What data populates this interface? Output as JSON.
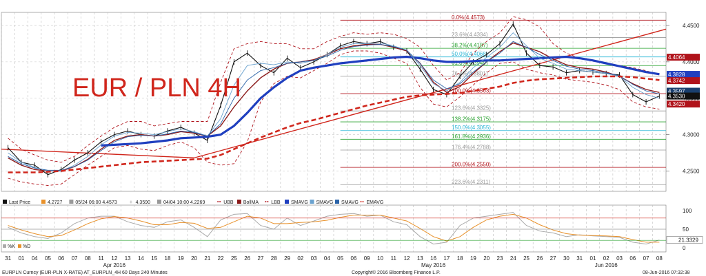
{
  "chart_data": {
    "type": "line",
    "title": "EUR / PLN 4H",
    "title_color": "#d0261c",
    "price_axis": {
      "ylim": [
        4.222,
        4.468
      ],
      "tick_labels": [
        "4.4500",
        "4.4000",
        "4.3500",
        "4.3000",
        "4.2500"
      ],
      "tick_values": [
        4.45,
        4.4,
        4.35,
        4.3,
        4.25
      ]
    },
    "price_tags": [
      {
        "label": "4.4064",
        "value": 4.4064,
        "color": "#b0131b"
      },
      {
        "label": "4.3828",
        "value": 4.3828,
        "color": "#1f3fbf"
      },
      {
        "label": "4.3742",
        "value": 4.3742,
        "color": "#b0131b"
      },
      {
        "label": "4.3597",
        "value": 4.3597,
        "color": "#1a3f6e"
      },
      {
        "label": "4.3530",
        "value": 4.353,
        "color": "#111111"
      },
      {
        "label": "4.3420",
        "value": 4.342,
        "color": "#b0131b"
      }
    ],
    "fibonacci": [
      {
        "label": "0.0%(4.4573)",
        "value": 4.4573,
        "color": "#b0131b"
      },
      {
        "label": "23.6%(4.4334)",
        "value": 4.4334,
        "color": "#999999"
      },
      {
        "label": "38.2%(4.4187)",
        "value": 4.4187,
        "color": "#27a12e"
      },
      {
        "label": "50.0%(4.4068)",
        "value": 4.4068,
        "color": "#27b5d6"
      },
      {
        "label": "61.8%(4.3949)",
        "value": 4.3949,
        "color": "#27a12e"
      },
      {
        "label": "76.4%(4.3801)",
        "value": 4.3801,
        "color": "#999999"
      },
      {
        "label": "100.0%(4.3563)",
        "value": 4.3563,
        "color": "#b0131b"
      },
      {
        "label": "123.6%(4.3325)",
        "value": 4.3325,
        "color": "#999999"
      },
      {
        "label": "138.2%(4.3175)",
        "value": 4.3175,
        "color": "#27a12e"
      },
      {
        "label": "150.0%(4.3055)",
        "value": 4.3055,
        "color": "#27b5d6"
      },
      {
        "label": "161.8%(4.2936)",
        "value": 4.2936,
        "color": "#27a12e"
      },
      {
        "label": "176.4%(4.2788)",
        "value": 4.2788,
        "color": "#999999"
      },
      {
        "label": "200.0%(4.2550)",
        "value": 4.255,
        "color": "#b0131b"
      },
      {
        "label": "223.6%(4.2311)",
        "value": 4.2311,
        "color": "#999999"
      }
    ],
    "legend": [
      {
        "label": "Last Price",
        "color": "#111111",
        "kind": "box"
      },
      {
        "label": "4.2727",
        "color": "#e8912a",
        "kind": "box"
      },
      {
        "label": "05/24 06:00 4.4573",
        "color": "#999999",
        "kind": "box"
      },
      {
        "label": "4.3590",
        "color": "#999999",
        "kind": "cross"
      },
      {
        "label": "04/04 10:00 4.2269",
        "color": "#999999",
        "kind": "box"
      },
      {
        "label": "UBB",
        "color": "#b0131b",
        "kind": "dash"
      },
      {
        "label": "BollMA",
        "color": "#8b1a1a",
        "kind": "box"
      },
      {
        "label": "LBB",
        "color": "#b0131b",
        "kind": "dash"
      },
      {
        "label": "SMAVG",
        "color": "#1f3fbf",
        "kind": "box"
      },
      {
        "label": "SMAVG",
        "color": "#6aa2cf",
        "kind": "box"
      },
      {
        "label": "SMAVG",
        "color": "#2a63a8",
        "kind": "box"
      },
      {
        "label": "EMAVG",
        "color": "#d0261c",
        "kind": "dash"
      }
    ],
    "indicator": {
      "ylim": [
        0,
        100
      ],
      "tick_labels": [
        "100",
        "50",
        "0"
      ],
      "tick_values": [
        100,
        50,
        0
      ],
      "last_label": "21.3329",
      "last_value": 21.3329,
      "legend": [
        {
          "label": "%K",
          "color": "#aaaaaa"
        },
        {
          "label": "%D",
          "color": "#e8912a"
        }
      ]
    },
    "x": {
      "day_labels": [
        "31",
        "01",
        "04",
        "05",
        "06",
        "07",
        "08",
        "11",
        "12",
        "13",
        "14",
        "15",
        "18",
        "19",
        "20",
        "21",
        "22",
        "25",
        "26",
        "27",
        "28",
        "29",
        "02",
        "03",
        "04",
        "05",
        "06",
        "09",
        "10",
        "11",
        "12",
        "13",
        "16",
        "17",
        "18",
        "19",
        "20",
        "23",
        "24",
        "25",
        "26",
        "27",
        "30",
        "31",
        "01",
        "02",
        "03",
        "06",
        "07",
        "08"
      ],
      "month_labels": [
        {
          "label": "Apr 2016",
          "index": 8
        },
        {
          "label": "May 2016",
          "index": 32
        },
        {
          "label": "Jun 2016",
          "index": 45
        }
      ]
    },
    "series": [
      {
        "name": "Last Price",
        "color": "#111111",
        "kind": "price",
        "values": [
          4.282,
          4.262,
          4.258,
          4.245,
          4.252,
          4.265,
          4.275,
          4.29,
          4.3,
          4.305,
          4.3,
          4.298,
          4.305,
          4.31,
          4.302,
          4.292,
          4.34,
          4.4,
          4.412,
          4.395,
          4.385,
          4.405,
          4.392,
          4.4,
          4.41,
          4.422,
          4.428,
          4.425,
          4.428,
          4.42,
          4.415,
          4.39,
          4.362,
          4.355,
          4.38,
          4.4,
          4.41,
          4.425,
          4.452,
          4.412,
          4.395,
          4.393,
          4.385,
          4.388,
          4.386,
          4.384,
          4.382,
          4.355,
          4.345,
          4.353
        ]
      },
      {
        "name": "UBB",
        "color": "#b0131b",
        "kind": "dash",
        "values": [
          4.295,
          4.28,
          4.272,
          4.265,
          4.262,
          4.27,
          4.285,
          4.298,
          4.31,
          4.318,
          4.318,
          4.312,
          4.315,
          4.318,
          4.318,
          4.318,
          4.372,
          4.418,
          4.425,
          4.428,
          4.425,
          4.425,
          4.418,
          4.418,
          4.428,
          4.435,
          4.44,
          4.438,
          4.44,
          4.438,
          4.432,
          4.42,
          4.395,
          4.375,
          4.385,
          4.412,
          4.428,
          4.44,
          4.462,
          4.458,
          4.448,
          4.425,
          4.412,
          4.405,
          4.402,
          4.398,
          4.395,
          4.392,
          4.388,
          4.382
        ]
      },
      {
        "name": "LBB",
        "color": "#b0131b",
        "kind": "dash",
        "values": [
          4.24,
          4.235,
          4.232,
          4.23,
          4.232,
          4.245,
          4.258,
          4.27,
          4.282,
          4.285,
          4.28,
          4.278,
          4.285,
          4.29,
          4.282,
          4.262,
          4.258,
          4.26,
          4.29,
          4.345,
          4.37,
          4.38,
          4.378,
          4.388,
          4.398,
          4.41,
          4.415,
          4.415,
          4.412,
          4.405,
          4.398,
          4.365,
          4.342,
          4.338,
          4.352,
          4.368,
          4.385,
          4.398,
          4.4,
          4.39,
          4.385,
          4.382,
          4.376,
          4.374,
          4.372,
          4.368,
          4.362,
          4.345,
          4.338,
          4.335
        ]
      },
      {
        "name": "BollMA",
        "color": "#8b1a1a",
        "kind": "solid",
        "values": [
          4.268,
          4.258,
          4.252,
          4.25,
          4.25,
          4.256,
          4.266,
          4.28,
          4.292,
          4.298,
          4.3,
          4.298,
          4.3,
          4.304,
          4.302,
          4.298,
          4.312,
          4.338,
          4.36,
          4.378,
          4.39,
          4.398,
          4.4,
          4.403,
          4.41,
          4.418,
          4.422,
          4.424,
          4.424,
          4.42,
          4.415,
          4.398,
          4.372,
          4.358,
          4.366,
          4.384,
          4.4,
          4.414,
          4.426,
          4.42,
          4.414,
          4.404,
          4.396,
          4.392,
          4.39,
          4.386,
          4.38,
          4.37,
          4.362,
          4.358
        ]
      },
      {
        "name": "SMAVG",
        "color": "#1f3fbf",
        "kind": "thick",
        "values": [
          null,
          null,
          null,
          null,
          null,
          null,
          null,
          4.285,
          4.286,
          4.287,
          4.288,
          4.29,
          4.292,
          4.295,
          4.296,
          4.297,
          4.3,
          4.312,
          4.33,
          4.35,
          4.365,
          4.378,
          4.388,
          4.392,
          4.395,
          4.398,
          4.4,
          4.402,
          4.404,
          4.406,
          4.407,
          4.405,
          4.402,
          4.4,
          4.4,
          4.401,
          4.402,
          4.402,
          4.403,
          4.404,
          4.405,
          4.406,
          4.407,
          4.405,
          4.402,
          4.398,
          4.394,
          4.39,
          4.386,
          4.383
        ]
      },
      {
        "name": "SMAVG",
        "color": "#6aa2cf",
        "kind": "thin",
        "values": [
          4.275,
          4.262,
          4.255,
          4.25,
          4.25,
          4.258,
          4.27,
          4.286,
          4.298,
          4.303,
          4.302,
          4.3,
          4.304,
          4.308,
          4.304,
          4.298,
          4.322,
          4.368,
          4.395,
          4.398,
          4.396,
          4.4,
          4.398,
          4.402,
          4.41,
          4.42,
          4.425,
          4.425,
          4.426,
          4.422,
          4.416,
          4.395,
          4.37,
          4.36,
          4.372,
          4.392,
          4.406,
          4.42,
          4.44,
          4.422,
          4.405,
          4.398,
          4.39,
          4.388,
          4.386,
          4.384,
          4.38,
          4.365,
          4.355,
          4.35
        ]
      },
      {
        "name": "SMAVG",
        "color": "#2a63a8",
        "kind": "thin",
        "values": [
          4.27,
          4.26,
          4.254,
          4.251,
          4.251,
          4.256,
          4.265,
          4.278,
          4.29,
          4.297,
          4.299,
          4.298,
          4.301,
          4.305,
          4.303,
          4.298,
          4.315,
          4.35,
          4.375,
          4.388,
          4.392,
          4.398,
          4.4,
          4.402,
          4.408,
          4.416,
          4.421,
          4.423,
          4.424,
          4.421,
          4.416,
          4.398,
          4.375,
          4.363,
          4.37,
          4.386,
          4.4,
          4.412,
          4.428,
          4.42,
          4.41,
          4.402,
          4.394,
          4.39,
          4.388,
          4.385,
          4.381,
          4.369,
          4.36,
          4.356
        ]
      },
      {
        "name": "EMAVG",
        "color": "#d0261c",
        "kind": "thickdash",
        "values": [
          4.248,
          4.248,
          4.248,
          4.249,
          4.25,
          4.252,
          4.254,
          4.256,
          4.258,
          4.26,
          4.262,
          4.263,
          4.264,
          4.265,
          4.266,
          4.267,
          4.272,
          4.28,
          4.288,
          4.296,
          4.303,
          4.31,
          4.316,
          4.32,
          4.325,
          4.33,
          4.335,
          4.34,
          4.344,
          4.348,
          4.352,
          4.354,
          4.355,
          4.356,
          4.357,
          4.36,
          4.363,
          4.366,
          4.371,
          4.374,
          4.376,
          4.377,
          4.378,
          4.379,
          4.38,
          4.38,
          4.38,
          4.379,
          4.377,
          4.375
        ]
      },
      {
        "name": "%K",
        "color": "#aaaaaa",
        "kind": "ind",
        "values": [
          55,
          40,
          30,
          25,
          40,
          65,
          80,
          85,
          85,
          70,
          60,
          55,
          70,
          75,
          55,
          30,
          75,
          90,
          92,
          60,
          50,
          80,
          60,
          72,
          85,
          90,
          92,
          85,
          88,
          70,
          62,
          30,
          10,
          15,
          60,
          80,
          85,
          90,
          95,
          60,
          45,
          40,
          30,
          35,
          32,
          30,
          28,
          15,
          10,
          21
        ]
      },
      {
        "name": "%D",
        "color": "#e8912a",
        "kind": "ind",
        "values": [
          60,
          48,
          38,
          30,
          33,
          48,
          65,
          78,
          84,
          80,
          72,
          62,
          62,
          68,
          66,
          52,
          55,
          70,
          85,
          80,
          65,
          65,
          68,
          70,
          74,
          82,
          88,
          88,
          88,
          80,
          72,
          52,
          30,
          18,
          30,
          55,
          75,
          85,
          90,
          80,
          62,
          48,
          38,
          34,
          33,
          32,
          30,
          22,
          15,
          15
        ]
      }
    ],
    "trendlines": [
      {
        "color": "#d0261c",
        "x0": 14,
        "y0": 4.268,
        "x1": 49.5,
        "y1": 4.445
      },
      {
        "color": "#d0261c",
        "x0": -0.5,
        "y0": 4.28,
        "x1": 14,
        "y1": 4.268
      }
    ]
  },
  "footer": {
    "left": "EURPLN Curncy (EUR-PLN X-RATE) AT_EURPLN_4H 60 Days 240 Minutes",
    "center": "Copyright© 2016 Bloomberg Finance L.P.",
    "right": "08-Jun-2016 07:32:38"
  }
}
